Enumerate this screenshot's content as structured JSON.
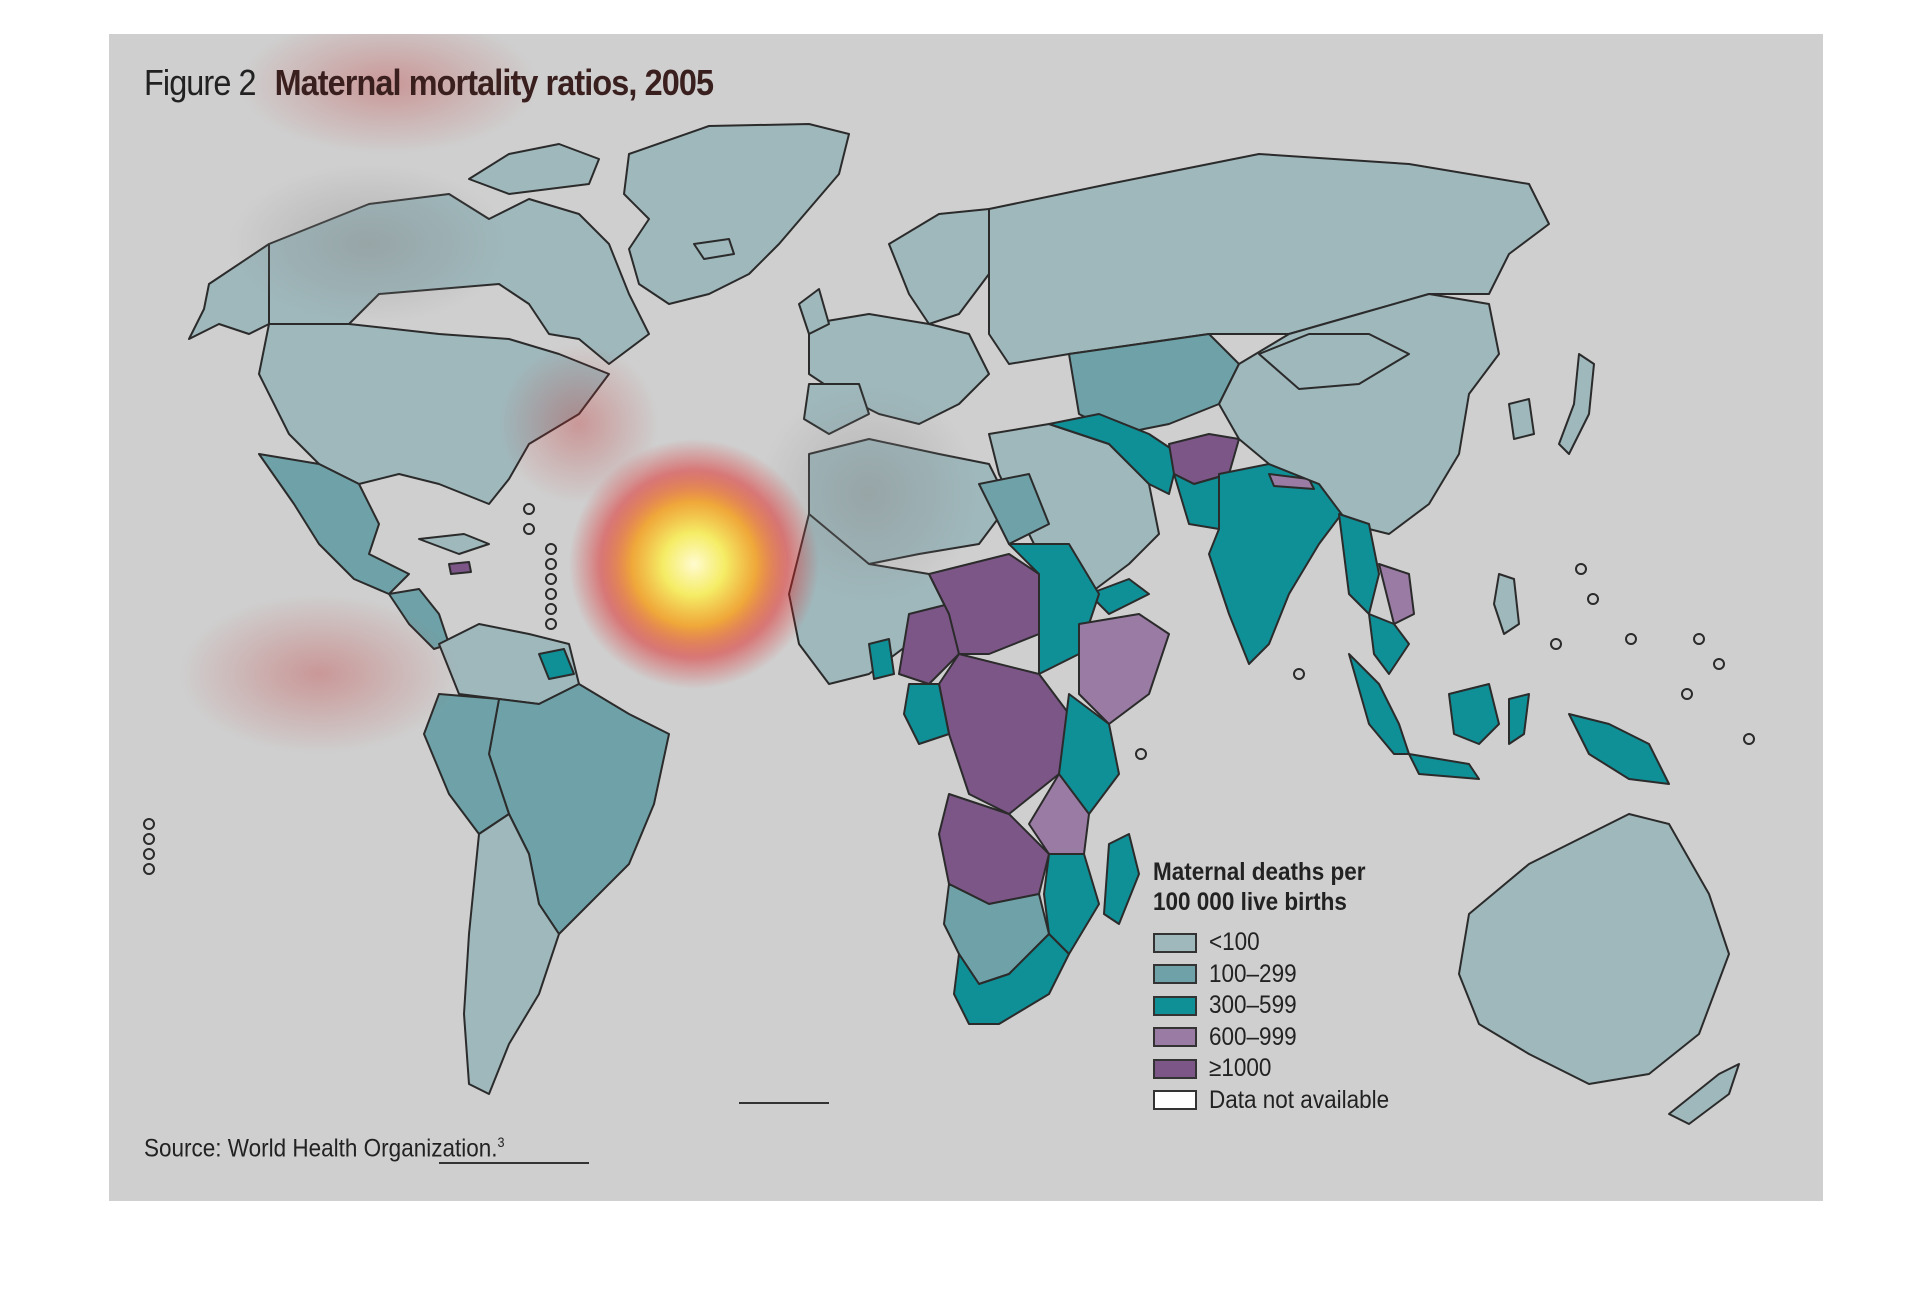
{
  "figure": {
    "label": "Figure 2",
    "title": "Maternal mortality ratios, 2005",
    "source": "Source: World Health Organization.",
    "source_ref": "3"
  },
  "legend": {
    "title_line1": "Maternal deaths per",
    "title_line2": "100 000 live births",
    "items": [
      {
        "label": "<100",
        "color": "#9fb8bc"
      },
      {
        "label": "100–299",
        "color": "#6fa2a8"
      },
      {
        "label": "300–599",
        "color": "#0f8f96"
      },
      {
        "label": "600–999",
        "color": "#9a7ba4"
      },
      {
        "label": "≥1000",
        "color": "#7c5687"
      },
      {
        "label": "Data not available",
        "color": "#ffffff"
      }
    ]
  },
  "colors": {
    "panel": "#cfcfcf",
    "border": "#2b2b2b",
    "heat_hot": "#fff7a0",
    "heat_warm": "#f0a030",
    "heat_red": "#d22020"
  }
}
